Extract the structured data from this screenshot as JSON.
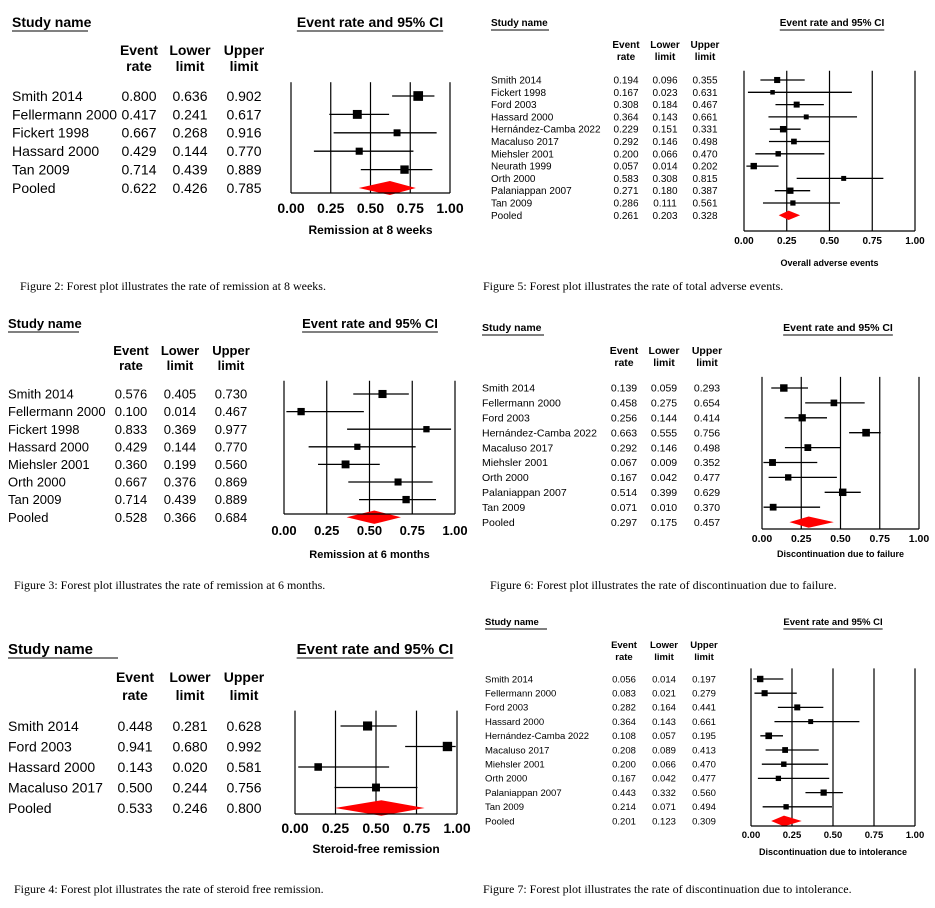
{
  "colors": {
    "diamond": "#ff0000",
    "ink": "#000000"
  },
  "chart_data": [
    {
      "id": "fig2",
      "type": "forest",
      "title": "Event rate and 95% CI",
      "study_header": "Study name",
      "col_headers": [
        [
          "Event",
          "rate"
        ],
        [
          "Lower",
          "limit"
        ],
        [
          "Upper",
          "limit"
        ]
      ],
      "xlabel": "Remission at 8 weeks",
      "xlim": [
        0,
        1
      ],
      "ticks": [
        "0.00",
        "0.25",
        "0.50",
        "0.75",
        "1.00"
      ],
      "studies": [
        {
          "name": "Smith 2014",
          "rate": 0.8,
          "lower": 0.636,
          "upper": 0.902
        },
        {
          "name": "Fellermann 2000",
          "rate": 0.417,
          "lower": 0.241,
          "upper": 0.617
        },
        {
          "name": "Fickert 1998",
          "rate": 0.667,
          "lower": 0.268,
          "upper": 0.916
        },
        {
          "name": "Hassard 2000",
          "rate": 0.429,
          "lower": 0.144,
          "upper": 0.77
        },
        {
          "name": "Tan 2009",
          "rate": 0.714,
          "lower": 0.439,
          "upper": 0.889
        }
      ],
      "pooled": {
        "name": "Pooled",
        "rate": 0.622,
        "lower": 0.426,
        "upper": 0.785
      },
      "caption": "Figure 2: Forest plot illustrates the rate of remission at 8 weeks."
    },
    {
      "id": "fig3",
      "type": "forest",
      "title": "Event rate and 95% CI",
      "study_header": "Study name",
      "col_headers": [
        [
          "Event",
          "rate"
        ],
        [
          "Lower",
          "limit"
        ],
        [
          "Upper",
          "limit"
        ]
      ],
      "xlabel": "Remission at 6 months",
      "xlim": [
        0,
        1
      ],
      "ticks": [
        "0.00",
        "0.25",
        "0.50",
        "0.75",
        "1.00"
      ],
      "studies": [
        {
          "name": "Smith 2014",
          "rate": 0.576,
          "lower": 0.405,
          "upper": 0.73
        },
        {
          "name": "Fellermann 2000",
          "rate": 0.1,
          "lower": 0.014,
          "upper": 0.467
        },
        {
          "name": "Fickert 1998",
          "rate": 0.833,
          "lower": 0.369,
          "upper": 0.977
        },
        {
          "name": "Hassard 2000",
          "rate": 0.429,
          "lower": 0.144,
          "upper": 0.77
        },
        {
          "name": "Miehsler 2001",
          "rate": 0.36,
          "lower": 0.199,
          "upper": 0.56
        },
        {
          "name": "Orth 2000",
          "rate": 0.667,
          "lower": 0.376,
          "upper": 0.869
        },
        {
          "name": "Tan 2009",
          "rate": 0.714,
          "lower": 0.439,
          "upper": 0.889
        }
      ],
      "pooled": {
        "name": "Pooled",
        "rate": 0.528,
        "lower": 0.366,
        "upper": 0.684
      },
      "caption": "Figure 3: Forest plot illustrates the rate of remission at 6 months."
    },
    {
      "id": "fig4",
      "type": "forest",
      "title": "Event rate and 95% CI",
      "study_header": "Study name",
      "col_headers": [
        [
          "Event",
          "rate"
        ],
        [
          "Lower",
          "limit"
        ],
        [
          "Upper",
          "limit"
        ]
      ],
      "xlabel": "Steroid-free remission",
      "xlim": [
        0,
        1
      ],
      "ticks": [
        "0.00",
        "0.25",
        "0.50",
        "0.75",
        "1.00"
      ],
      "studies": [
        {
          "name": "Smith 2014",
          "rate": 0.448,
          "lower": 0.281,
          "upper": 0.628
        },
        {
          "name": "Ford 2003",
          "rate": 0.941,
          "lower": 0.68,
          "upper": 0.992
        },
        {
          "name": "Hassard 2000",
          "rate": 0.143,
          "lower": 0.02,
          "upper": 0.581
        },
        {
          "name": "Macaluso 2017",
          "rate": 0.5,
          "lower": 0.244,
          "upper": 0.756
        }
      ],
      "pooled": {
        "name": "Pooled",
        "rate": 0.533,
        "lower": 0.246,
        "upper": 0.8
      },
      "caption": "Figure 4: Forest plot illustrates the rate of steroid free remission."
    },
    {
      "id": "fig5",
      "type": "forest",
      "title": "Event rate and 95% CI",
      "study_header": "Study name",
      "col_headers": [
        [
          "Event",
          "rate"
        ],
        [
          "Lower",
          "limit"
        ],
        [
          "Upper",
          "limit"
        ]
      ],
      "xlabel": "Overall adverse events",
      "xlim": [
        0,
        1
      ],
      "ticks": [
        "0.00",
        "0.25",
        "0.50",
        "0.75",
        "1.00"
      ],
      "studies": [
        {
          "name": "Smith 2014",
          "rate": 0.194,
          "lower": 0.096,
          "upper": 0.355
        },
        {
          "name": "Fickert 1998",
          "rate": 0.167,
          "lower": 0.023,
          "upper": 0.631
        },
        {
          "name": "Ford 2003",
          "rate": 0.308,
          "lower": 0.184,
          "upper": 0.467
        },
        {
          "name": "Hassard 2000",
          "rate": 0.364,
          "lower": 0.143,
          "upper": 0.661
        },
        {
          "name": "Hernández-Camba 2022",
          "rate": 0.229,
          "lower": 0.151,
          "upper": 0.331
        },
        {
          "name": "Macaluso 2017",
          "rate": 0.292,
          "lower": 0.146,
          "upper": 0.498
        },
        {
          "name": "Miehsler 2001",
          "rate": 0.2,
          "lower": 0.066,
          "upper": 0.47
        },
        {
          "name": "Neurath 1999",
          "rate": 0.057,
          "lower": 0.014,
          "upper": 0.202
        },
        {
          "name": "Orth 2000",
          "rate": 0.583,
          "lower": 0.308,
          "upper": 0.815
        },
        {
          "name": "Palaniappan 2007",
          "rate": 0.271,
          "lower": 0.18,
          "upper": 0.387
        },
        {
          "name": "Tan 2009",
          "rate": 0.286,
          "lower": 0.111,
          "upper": 0.561
        }
      ],
      "pooled": {
        "name": "Pooled",
        "rate": 0.261,
        "lower": 0.203,
        "upper": 0.328
      },
      "caption": "Figure 5: Forest plot illustrates the rate of total adverse events."
    },
    {
      "id": "fig6",
      "type": "forest",
      "title": "Event rate and 95% CI",
      "study_header": "Study name",
      "col_headers": [
        [
          "Event",
          "rate"
        ],
        [
          "Lower",
          "limit"
        ],
        [
          "Upper",
          "limit"
        ]
      ],
      "xlabel": "Discontinuation due to failure",
      "xlim": [
        0,
        1
      ],
      "ticks": [
        "0.00",
        "0.25",
        "0.50",
        "0.75",
        "1.00"
      ],
      "studies": [
        {
          "name": "Smith 2014",
          "rate": 0.139,
          "lower": 0.059,
          "upper": 0.293
        },
        {
          "name": "Fellermann 2000",
          "rate": 0.458,
          "lower": 0.275,
          "upper": 0.654
        },
        {
          "name": "Ford 2003",
          "rate": 0.256,
          "lower": 0.144,
          "upper": 0.414
        },
        {
          "name": "Hernández-Camba 2022",
          "rate": 0.663,
          "lower": 0.555,
          "upper": 0.756
        },
        {
          "name": "Macaluso 2017",
          "rate": 0.292,
          "lower": 0.146,
          "upper": 0.498
        },
        {
          "name": "Miehsler 2001",
          "rate": 0.067,
          "lower": 0.009,
          "upper": 0.352
        },
        {
          "name": "Orth 2000",
          "rate": 0.167,
          "lower": 0.042,
          "upper": 0.477
        },
        {
          "name": "Palaniappan 2007",
          "rate": 0.514,
          "lower": 0.399,
          "upper": 0.629
        },
        {
          "name": "Tan 2009",
          "rate": 0.071,
          "lower": 0.01,
          "upper": 0.37
        }
      ],
      "pooled": {
        "name": "Pooled",
        "rate": 0.297,
        "lower": 0.175,
        "upper": 0.457
      },
      "caption": "Figure 6: Forest plot illustrates the rate of discontinuation due to failure."
    },
    {
      "id": "fig7",
      "type": "forest",
      "title": "Event rate and 95% CI",
      "study_header": "Study name",
      "col_headers": [
        [
          "Event",
          "rate"
        ],
        [
          "Lower",
          "limit"
        ],
        [
          "Upper",
          "limit"
        ]
      ],
      "xlabel": "Discontinuation due to intolerance",
      "xlim": [
        0,
        1
      ],
      "ticks": [
        "0.00",
        "0.25",
        "0.50",
        "0.75",
        "1.00"
      ],
      "studies": [
        {
          "name": "Smith 2014",
          "rate": 0.056,
          "lower": 0.014,
          "upper": 0.197
        },
        {
          "name": "Fellermann 2000",
          "rate": 0.083,
          "lower": 0.021,
          "upper": 0.279
        },
        {
          "name": "Ford 2003",
          "rate": 0.282,
          "lower": 0.164,
          "upper": 0.441
        },
        {
          "name": "Hassard 2000",
          "rate": 0.364,
          "lower": 0.143,
          "upper": 0.661
        },
        {
          "name": "Hernández-Camba 2022",
          "rate": 0.108,
          "lower": 0.057,
          "upper": 0.195
        },
        {
          "name": "Macaluso 2017",
          "rate": 0.208,
          "lower": 0.089,
          "upper": 0.413
        },
        {
          "name": "Miehsler 2001",
          "rate": 0.2,
          "lower": 0.066,
          "upper": 0.47
        },
        {
          "name": "Orth 2000",
          "rate": 0.167,
          "lower": 0.042,
          "upper": 0.477
        },
        {
          "name": "Palaniappan 2007",
          "rate": 0.443,
          "lower": 0.332,
          "upper": 0.56
        },
        {
          "name": "Tan 2009",
          "rate": 0.214,
          "lower": 0.071,
          "upper": 0.494
        }
      ],
      "pooled": {
        "name": "Pooled",
        "rate": 0.201,
        "lower": 0.123,
        "upper": 0.309
      },
      "caption": "Figure 7: Forest plot illustrates the rate of discontinuation due to intolerance."
    }
  ]
}
